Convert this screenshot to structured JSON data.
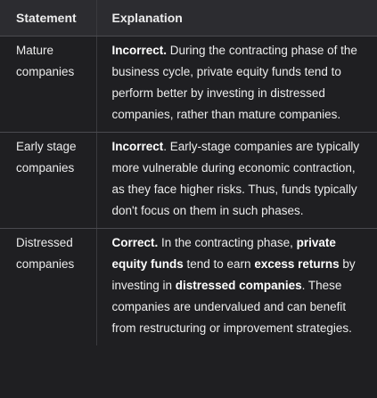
{
  "table": {
    "headers": {
      "statement": "Statement",
      "explanation": "Explanation"
    },
    "rows": [
      {
        "statement": "Mature companies",
        "verdict": "Incorrect.",
        "text": " During the contracting phase of the business cycle, private equity funds tend to perform better by investing in distressed companies, rather than mature companies."
      },
      {
        "statement": "Early stage companies",
        "verdict": "Incorrect",
        "text": ". Early-stage companies are typically more vulnerable during economic contraction, as they face higher risks. Thus, funds typically don't focus on them in such phases."
      },
      {
        "statement": "Distressed companies",
        "verdict": "Correct.",
        "p1": " In the contracting phase, ",
        "b1": "private equity funds",
        "p2": " tend to earn ",
        "b2": "excess returns",
        "p3": " by investing in ",
        "b3": "distressed companies",
        "p4": ". These companies are undervalued and can benefit from restructuring or improvement strategies."
      }
    ]
  }
}
